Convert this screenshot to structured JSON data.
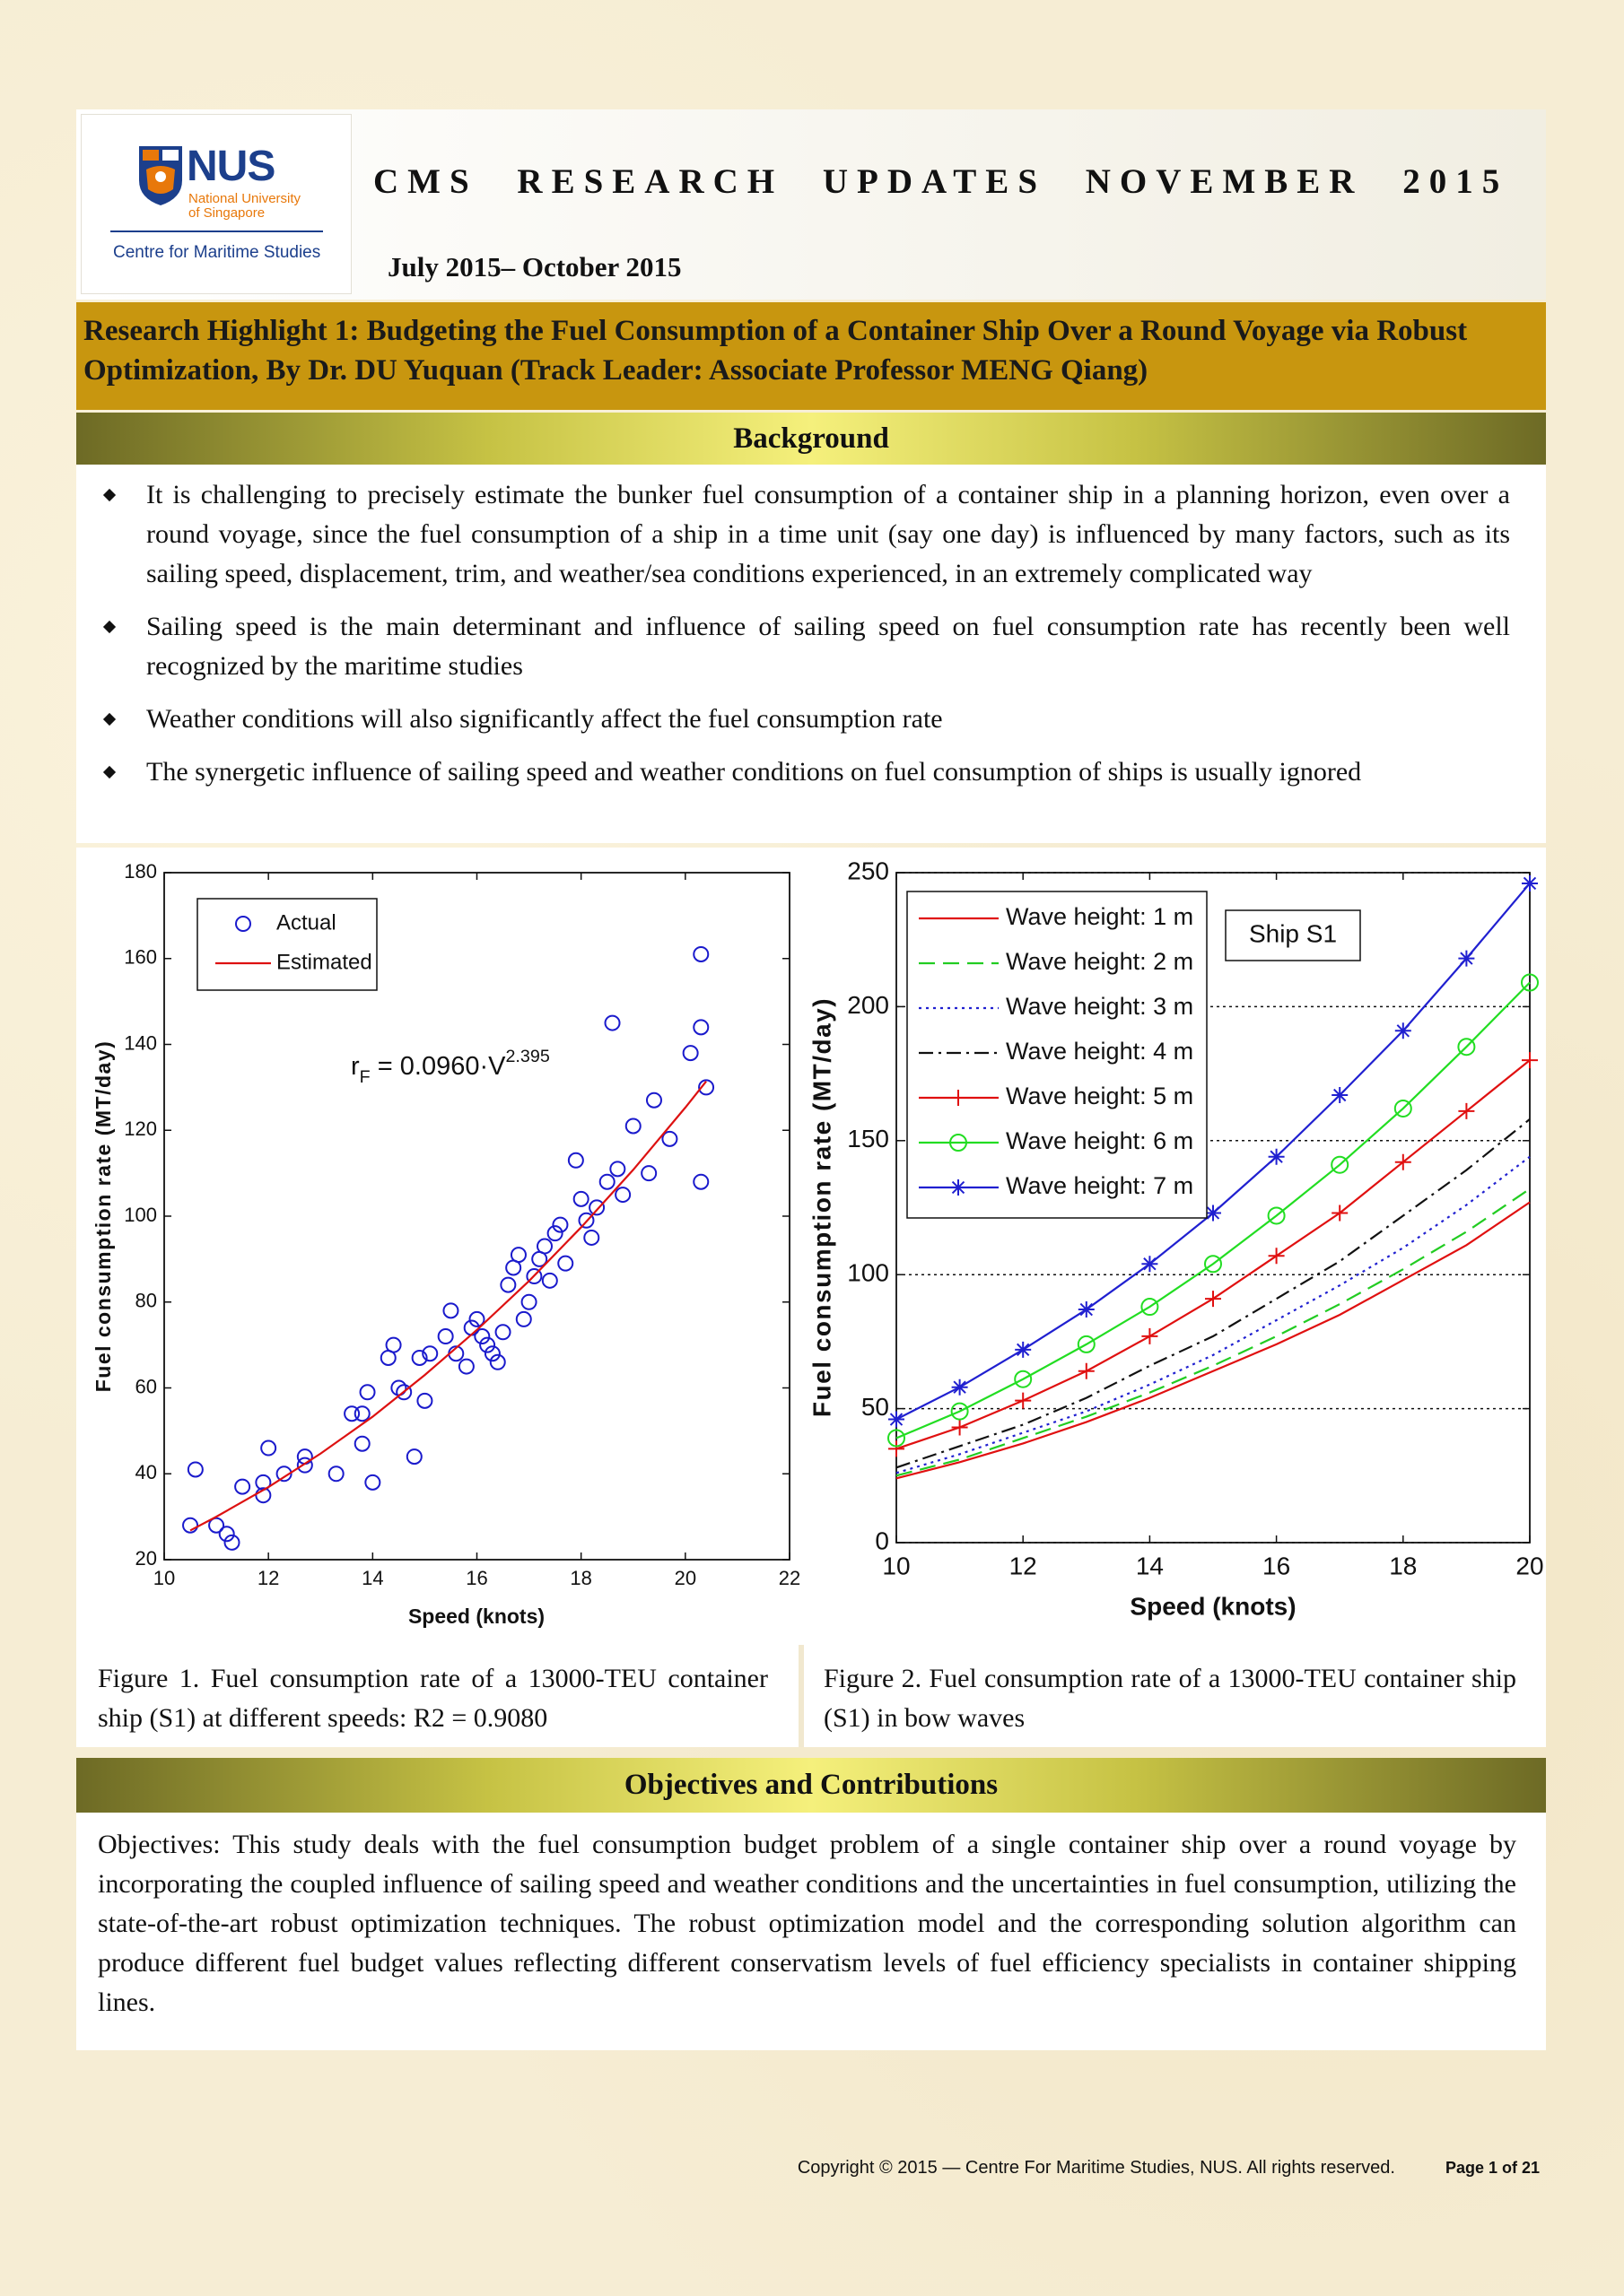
{
  "logo": {
    "name": "NUS",
    "line1": "National University",
    "line2": "of Singapore",
    "centre": "Centre for Maritime Studies"
  },
  "header": {
    "title": "CMS RESEARCH UPDATES NOVEMBER 2015",
    "period": "July 2015– October 2015"
  },
  "highlight": {
    "title": "Research Highlight 1: Budgeting the Fuel Consumption of a Container Ship Over a Round Voyage via Robust Optimization, By Dr. DU Yuquan (Track Leader: Associate Professor MENG Qiang)"
  },
  "background": {
    "heading": "Background",
    "bullets": [
      "It is challenging to precisely estimate the bunker fuel consumption of a container ship in a planning horizon, even over a round voyage, since the fuel consumption of a ship in a time unit (say one day) is influenced by many factors, such as its sailing speed, displacement, trim, and weather/sea conditions experienced, in an extremely complicated way",
      "Sailing speed is the main determinant and influence of sailing speed on fuel consumption rate has recently been well recognized by the maritime studies",
      "Weather conditions will also significantly affect the fuel consumption rate",
      "The synergetic influence of sailing speed and weather conditions on fuel consumption of ships is usually ignored"
    ]
  },
  "chart_data": [
    {
      "type": "scatter",
      "xlabel": "Speed (knots)",
      "ylabel": "Fuel consumption rate (MT/day)",
      "xlim": [
        10,
        22
      ],
      "xticks": [
        10,
        12,
        14,
        16,
        18,
        20,
        22
      ],
      "ylim": [
        20,
        180
      ],
      "yticks": [
        20,
        40,
        60,
        80,
        100,
        120,
        140,
        160,
        180
      ],
      "grid": false,
      "legend": "upper left",
      "annotation": {
        "base": "r",
        "sub": "F",
        "mid": " = 0.0960·V",
        "sup": "2.395"
      },
      "series": [
        {
          "name": "Actual",
          "color": "#1a1acc",
          "line": "none",
          "marker": "circle",
          "x": [
            10.5,
            10.6,
            11,
            11.2,
            11.3,
            11.5,
            11.9,
            11.9,
            12.0,
            12.3,
            12.7,
            12.7,
            13.3,
            13.6,
            13.8,
            13.9,
            13.8,
            14.0,
            14.3,
            14.4,
            14.5,
            14.6,
            14.8,
            14.9,
            15.0,
            15.1,
            15.4,
            15.5,
            15.6,
            15.8,
            15.9,
            16.0,
            16.1,
            16.2,
            16.3,
            16.4,
            16.5,
            16.6,
            16.7,
            16.8,
            16.9,
            17.0,
            17.1,
            17.2,
            17.3,
            17.4,
            17.5,
            17.6,
            17.7,
            17.9,
            18.0,
            18.1,
            18.2,
            18.3,
            18.5,
            18.6,
            18.7,
            18.8,
            19.0,
            19.3,
            19.4,
            19.7,
            20.1,
            20.3,
            20.3,
            20.3,
            20.4
          ],
          "values": [
            28,
            41,
            28,
            26,
            24,
            37,
            35,
            38,
            46,
            40,
            42,
            44,
            40,
            54,
            54,
            59,
            47,
            38,
            67,
            70,
            60,
            59,
            44,
            67,
            57,
            68,
            72,
            78,
            68,
            65,
            74,
            76,
            72,
            70,
            68,
            66,
            73,
            84,
            88,
            91,
            76,
            80,
            86,
            90,
            93,
            85,
            96,
            98,
            89,
            113,
            104,
            99,
            95,
            102,
            108,
            145,
            111,
            105,
            121,
            110,
            127,
            118,
            138,
            161,
            144,
            108,
            130
          ]
        },
        {
          "name": "Estimated",
          "color": "#dd1111",
          "line": "solid",
          "marker": "none",
          "x": [
            10.5,
            11,
            12,
            13,
            14,
            15,
            16,
            17,
            18,
            19,
            20,
            20.4
          ],
          "values": [
            26.8,
            30.0,
            36.9,
            44.7,
            53.3,
            63.0,
            73.5,
            84.9,
            97.4,
            110.8,
            125.3,
            131.4
          ]
        }
      ]
    },
    {
      "type": "line",
      "xlabel": "Speed (knots)",
      "ylabel": "Fuel consumption rate (MT/day)",
      "xlim": [
        10,
        20
      ],
      "xticks": [
        10,
        12,
        14,
        16,
        18,
        20
      ],
      "ylim": [
        0,
        250
      ],
      "yticks": [
        0,
        50,
        100,
        150,
        200,
        250
      ],
      "grid": true,
      "legend": "upper left",
      "annotation": "Ship S1",
      "x": [
        10,
        11,
        12,
        13,
        14,
        15,
        16,
        17,
        18,
        19,
        20
      ],
      "series": [
        {
          "name": "Wave height: 1 m",
          "color": "#e01010",
          "line": "solid",
          "marker": "none",
          "values": [
            24,
            30,
            37,
            45,
            54,
            64,
            74,
            85,
            98,
            111,
            127
          ]
        },
        {
          "name": "Wave height: 2 m",
          "color": "#22cc22",
          "line": "dashed",
          "marker": "none",
          "values": [
            25,
            31,
            39,
            47,
            56,
            66,
            77,
            89,
            102,
            116,
            132
          ]
        },
        {
          "name": "Wave height: 3 m",
          "color": "#2020d0",
          "line": "dotted",
          "marker": "none",
          "values": [
            26,
            33,
            41,
            49,
            59,
            70,
            83,
            96,
            110,
            126,
            144
          ]
        },
        {
          "name": "Wave height: 4 m",
          "color": "#111111",
          "line": "dashdot",
          "marker": "none",
          "values": [
            28,
            36,
            44,
            54,
            66,
            77,
            91,
            105,
            122,
            139,
            158
          ]
        },
        {
          "name": "Wave height: 5 m",
          "color": "#e01010",
          "line": "solid",
          "marker": "plus",
          "values": [
            35,
            43,
            53,
            64,
            77,
            91,
            107,
            123,
            142,
            161,
            180
          ]
        },
        {
          "name": "Wave height: 6 m",
          "color": "#22dd22",
          "line": "solid",
          "marker": "circle",
          "values": [
            39,
            49,
            61,
            74,
            88,
            104,
            122,
            141,
            162,
            185,
            209
          ]
        },
        {
          "name": "Wave height: 7 m",
          "color": "#2020d0",
          "line": "solid",
          "marker": "star",
          "values": [
            46,
            58,
            72,
            87,
            104,
            123,
            144,
            167,
            191,
            218,
            246
          ]
        }
      ]
    }
  ],
  "captions": [
    "Figure 1. Fuel consumption rate of a 13000-TEU container ship (S1) at different speeds: R2 = 0.9080",
    "Figure 2. Fuel consumption rate of a 13000-TEU container ship (S1) in bow waves"
  ],
  "objectives": {
    "heading": "Objectives and Contributions",
    "text": "Objectives: This study deals with the fuel consumption budget problem of a single container ship over a round voyage by incorporating the coupled influence of sailing speed and weather conditions and the uncertainties in fuel consumption, utilizing the state-of-the-art robust optimization techniques. The robust optimization model and the corresponding solution algorithm can produce different fuel budget values reflecting different conservatism levels of fuel efficiency specialists in container shipping lines."
  },
  "footer": {
    "copyright": "Copyright © 2015 — Centre For Maritime Studies, NUS. All rights reserved.",
    "page": "Page 1 of 21"
  }
}
